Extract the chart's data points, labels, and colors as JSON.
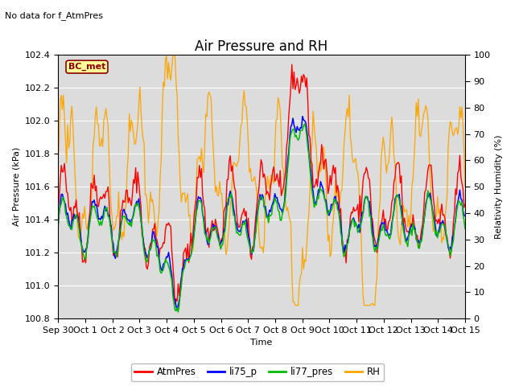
{
  "title": "Air Pressure and RH",
  "no_data_text": "No data for f_AtmPres",
  "station_label": "BC_met",
  "ylabel_left": "Air Pressure (kPa)",
  "ylabel_right": "Relativity Humidity (%)",
  "xlabel": "Time",
  "ylim_left": [
    100.8,
    102.4
  ],
  "ylim_right": [
    0,
    100
  ],
  "yticks_left": [
    100.8,
    101.0,
    101.2,
    101.4,
    101.6,
    101.8,
    102.0,
    102.2,
    102.4
  ],
  "yticks_right": [
    0,
    10,
    20,
    30,
    40,
    50,
    60,
    70,
    80,
    90,
    100
  ],
  "xtick_labels": [
    "Sep 30",
    "Oct 1",
    "Oct 2",
    "Oct 3",
    "Oct 4",
    "Oct 5",
    "Oct 6",
    "Oct 7",
    "Oct 8",
    "Oct 9",
    "Oct 10",
    "Oct 11",
    "Oct 12",
    "Oct 13",
    "Oct 14",
    "Oct 15"
  ],
  "colors": {
    "AtmPres": "#FF0000",
    "li75_p": "#0000FF",
    "li77_pres": "#00BB00",
    "RH": "#FFA500"
  },
  "legend_labels": [
    "AtmPres",
    "li75_p",
    "li77_pres",
    "RH"
  ],
  "fig_bg_color": "#FFFFFF",
  "plot_bg_color": "#DCDCDC",
  "title_fontsize": 12,
  "label_fontsize": 8,
  "tick_fontsize": 8
}
